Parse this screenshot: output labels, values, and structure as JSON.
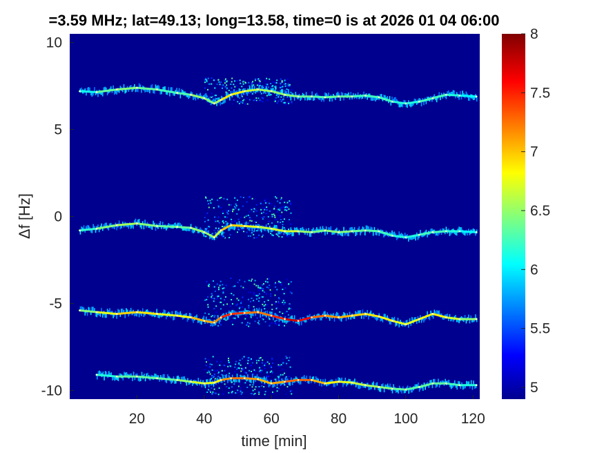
{
  "chart_data": {
    "type": "heatmap",
    "title": "=3.59 MHz;  lat=49.13; long=13.58, time=0 is at 2026 01 04 06:00",
    "xlabel": "time [min]",
    "ylabel": "Δf [Hz]",
    "xlim": [
      0,
      122
    ],
    "ylim": [
      -10.5,
      10.5
    ],
    "x_ticks": [
      20,
      40,
      60,
      80,
      100,
      120
    ],
    "y_ticks": [
      -10,
      -5,
      0,
      5,
      10
    ],
    "colorbar": {
      "clim": [
        4.9,
        8.0
      ],
      "ticks": [
        5,
        5.5,
        6,
        6.5,
        7,
        7.5,
        8
      ],
      "colormap": "jet"
    },
    "background_color": "#00008f",
    "series": [
      {
        "x": [
          3,
          8,
          14,
          20,
          26,
          32,
          36,
          40,
          43,
          45,
          48,
          52,
          56,
          60,
          64,
          68,
          72,
          76,
          80,
          84,
          88,
          92,
          96,
          100,
          104,
          108,
          112,
          116,
          121
        ],
        "y": [
          7.2,
          7.15,
          7.3,
          7.4,
          7.3,
          7.1,
          7.0,
          6.8,
          6.5,
          6.7,
          7.0,
          7.2,
          7.3,
          7.2,
          7.0,
          6.9,
          6.9,
          6.85,
          6.9,
          6.9,
          6.95,
          6.85,
          6.6,
          6.5,
          6.6,
          6.8,
          7.0,
          6.95,
          6.9
        ],
        "intensity": [
          6.0,
          6.2,
          6.5,
          6.4,
          6.3,
          6.2,
          6.4,
          6.6,
          6.3,
          6.8,
          7.0,
          6.7,
          6.6,
          6.5,
          6.5,
          6.4,
          6.3,
          6.3,
          6.4,
          6.3,
          6.2,
          6.3,
          6.2,
          6.1,
          6.2,
          6.3,
          6.2,
          6.1,
          6.0
        ]
      },
      {
        "x": [
          3,
          8,
          14,
          20,
          26,
          32,
          36,
          40,
          43,
          45,
          48,
          52,
          56,
          60,
          64,
          68,
          72,
          76,
          80,
          84,
          88,
          92,
          96,
          100,
          104,
          108,
          112,
          116,
          121
        ],
        "y": [
          -0.8,
          -0.7,
          -0.5,
          -0.4,
          -0.55,
          -0.6,
          -0.65,
          -0.9,
          -1.2,
          -0.8,
          -0.5,
          -0.55,
          -0.6,
          -0.7,
          -0.85,
          -0.85,
          -0.9,
          -0.8,
          -0.9,
          -0.85,
          -0.8,
          -0.85,
          -1.1,
          -1.2,
          -1.05,
          -0.9,
          -0.85,
          -0.85,
          -0.9
        ],
        "intensity": [
          6.1,
          6.3,
          6.6,
          6.5,
          6.4,
          6.3,
          6.4,
          6.6,
          6.4,
          6.9,
          7.1,
          6.8,
          6.7,
          6.6,
          6.8,
          6.6,
          6.4,
          6.4,
          6.5,
          6.4,
          6.3,
          6.3,
          6.2,
          6.1,
          6.2,
          6.3,
          6.2,
          6.1,
          6.0
        ]
      },
      {
        "x": [
          3,
          8,
          14,
          20,
          26,
          32,
          36,
          40,
          43,
          45,
          48,
          52,
          56,
          60,
          64,
          68,
          72,
          76,
          80,
          84,
          88,
          92,
          96,
          100,
          104,
          108,
          112,
          116,
          121
        ],
        "y": [
          -5.4,
          -5.5,
          -5.6,
          -5.5,
          -5.6,
          -5.7,
          -5.8,
          -6.0,
          -6.1,
          -5.8,
          -5.6,
          -5.55,
          -5.5,
          -5.7,
          -5.9,
          -6.0,
          -5.8,
          -5.7,
          -5.8,
          -5.7,
          -5.6,
          -5.75,
          -6.0,
          -6.2,
          -5.9,
          -5.6,
          -5.8,
          -5.9,
          -5.9
        ],
        "intensity": [
          6.3,
          6.6,
          6.9,
          7.0,
          6.8,
          6.7,
          6.9,
          7.2,
          7.0,
          7.4,
          7.6,
          7.3,
          7.2,
          7.3,
          7.7,
          7.8,
          7.4,
          7.2,
          7.1,
          7.0,
          6.9,
          6.9,
          6.8,
          6.7,
          6.8,
          6.9,
          6.8,
          6.6,
          6.4
        ]
      },
      {
        "x": [
          8,
          14,
          20,
          26,
          32,
          36,
          40,
          43,
          45,
          48,
          52,
          56,
          60,
          64,
          68,
          72,
          76,
          80,
          84,
          88,
          92,
          96,
          100,
          104,
          108,
          112,
          116,
          121
        ],
        "y": [
          -9.1,
          -9.2,
          -9.2,
          -9.3,
          -9.4,
          -9.5,
          -9.6,
          -9.55,
          -9.4,
          -9.3,
          -9.3,
          -9.35,
          -9.6,
          -9.5,
          -9.4,
          -9.4,
          -9.6,
          -9.5,
          -9.55,
          -9.7,
          -9.8,
          -9.9,
          -9.95,
          -9.8,
          -9.6,
          -9.6,
          -9.7,
          -9.7
        ],
        "intensity": [
          6.0,
          6.3,
          6.4,
          6.3,
          6.4,
          6.6,
          6.8,
          6.7,
          7.0,
          7.3,
          7.2,
          7.1,
          7.0,
          7.2,
          7.4,
          7.2,
          6.9,
          6.8,
          6.7,
          6.6,
          6.5,
          6.4,
          6.3,
          6.3,
          6.4,
          6.3,
          6.2,
          6.1
        ]
      }
    ],
    "scatter_region": {
      "x": [
        40,
        66
      ],
      "y_bands": [
        [
          6.5,
          8.0
        ],
        [
          -1.2,
          1.2
        ],
        [
          -6.3,
          -3.5
        ],
        [
          -10.2,
          -8.0
        ]
      ]
    }
  }
}
